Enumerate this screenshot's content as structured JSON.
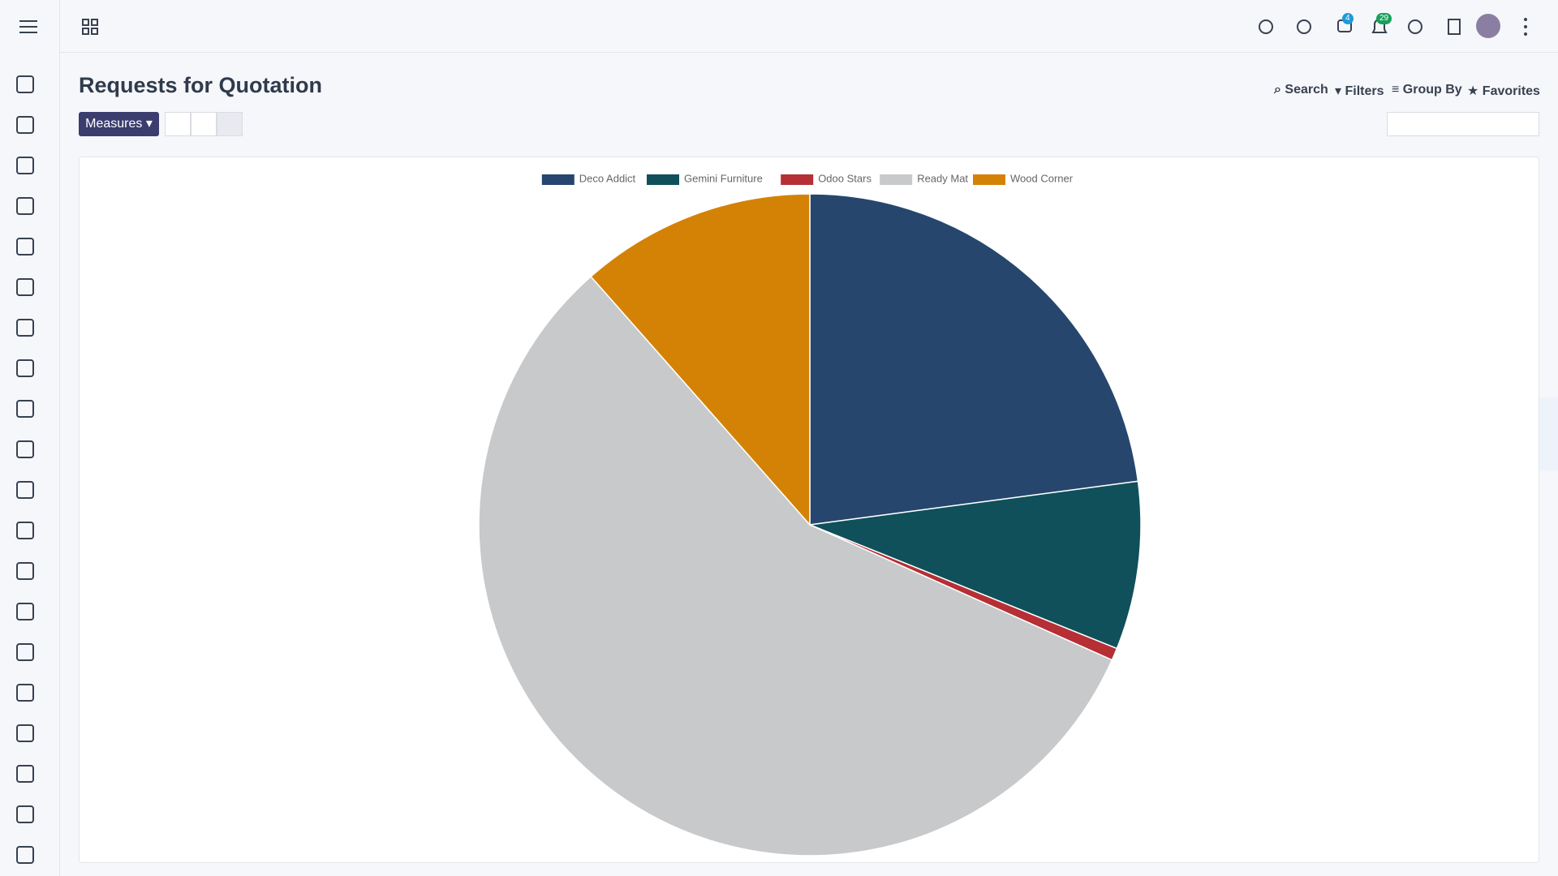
{
  "page": {
    "title": "Requests for Quotation",
    "measures": "Measures",
    "search": "Search",
    "filters": "Filters",
    "group_by": "Group By",
    "favorites": "Favorites",
    "chat_badge": "4",
    "notif_badge": "29"
  },
  "chart_data": {
    "type": "pie",
    "categories": [
      "Deco Addict",
      "Gemini Furniture",
      "Odoo Stars",
      "Ready Mat",
      "Wood Corner"
    ],
    "values": [
      22.9,
      8.2,
      0.6,
      56.8,
      11.5
    ],
    "colors": [
      "#26466d",
      "#0f505b",
      "#b52f35",
      "#c8c9cb",
      "#d48206"
    ],
    "legend": "top"
  }
}
